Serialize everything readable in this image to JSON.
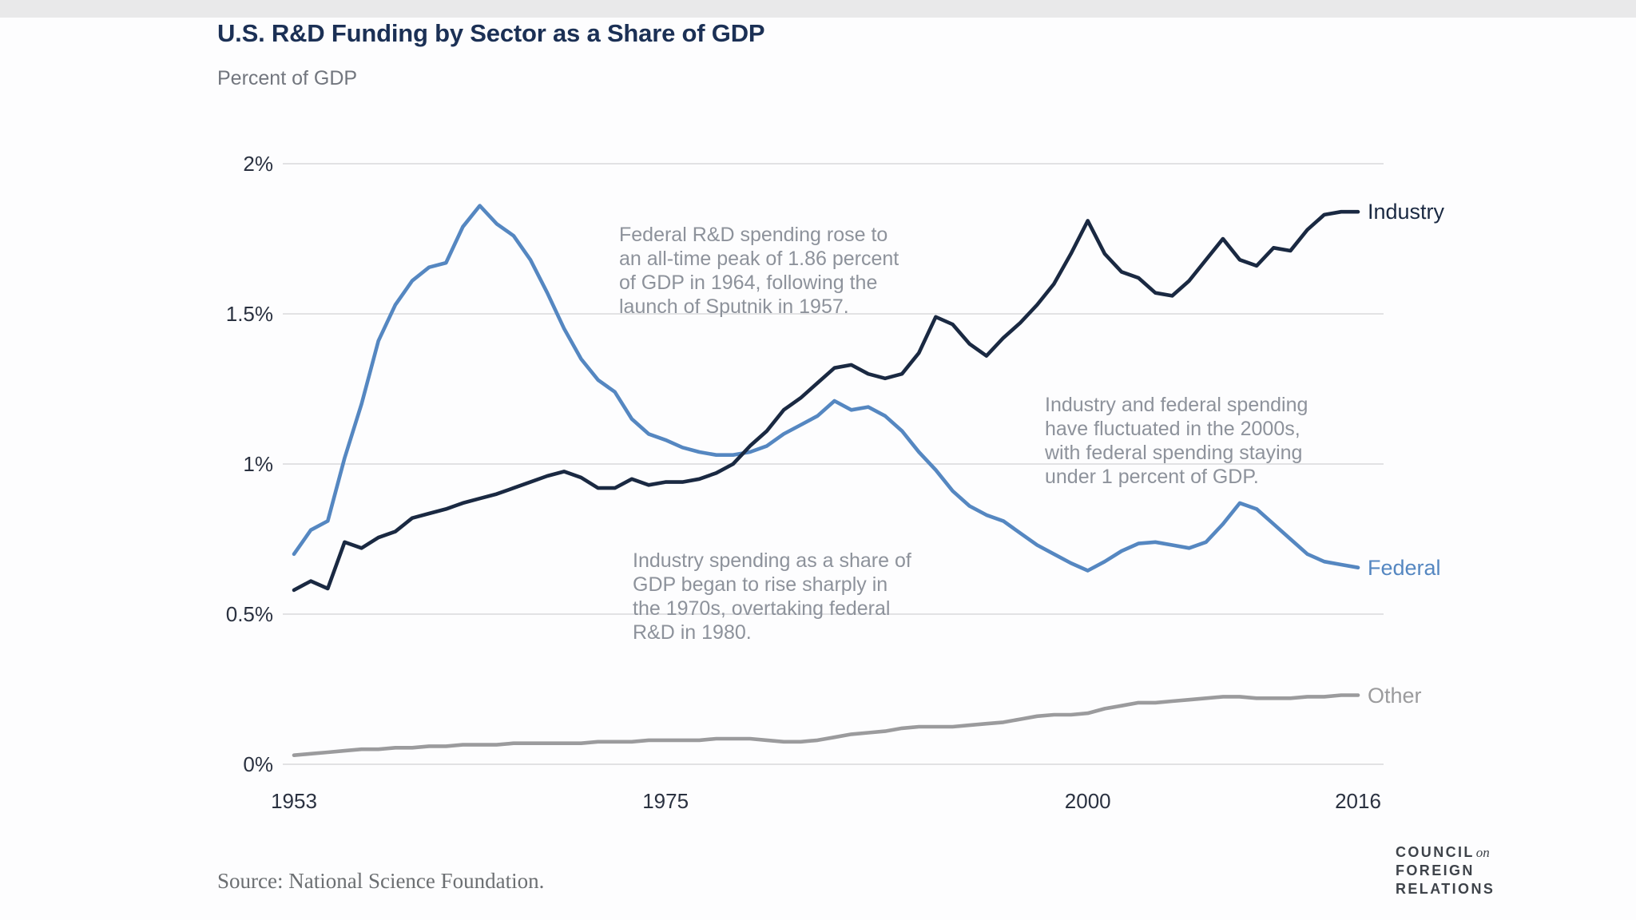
{
  "header": {
    "title": "U.S. R&D Funding by Sector as a Share of GDP",
    "subtitle": "Percent of GDP"
  },
  "annotations": [
    {
      "text": "Federal R&D spending rose to an all-time peak of 1.86 percent of GDP in 1964, following the launch of Sputnik in 1957.",
      "lines": [
        "Federal R&D spending rose to",
        "an all-time peak of 1.86 percent",
        "of GDP in 1964, following the",
        "launch of Sputnik in 1957."
      ]
    },
    {
      "text": "Industry and federal spending have fluctuated in the 2000s, with federal spending staying under 1 percent of GDP.",
      "lines": [
        "Industry and federal spending",
        "have fluctuated in the 2000s,",
        "with federal spending staying",
        "under 1 percent of GDP."
      ]
    },
    {
      "text": "Industry spending as a share of GDP began to rise sharply in the 1970s, overtaking federal R&D in 1980.",
      "lines": [
        "Industry spending as a share of",
        "GDP began to rise sharply in",
        "the 1970s, overtaking federal",
        "R&D in 1980."
      ]
    }
  ],
  "footer": {
    "source": "Source: National Science Foundation.",
    "logo": {
      "line1_main": "COUNCIL",
      "line1_italic": "on",
      "line2": "FOREIGN",
      "line3": "RELATIONS"
    }
  },
  "chart_data": {
    "type": "line",
    "title": "U.S. R&D Funding by Sector as a Share of GDP",
    "ylabel": "Percent of GDP",
    "xlabel": "",
    "grid": "horizontal",
    "legend_position": "line-end-labels",
    "x_range": [
      1953,
      2016
    ],
    "y_range": [
      0,
      2
    ],
    "yticks": [
      {
        "value": 0,
        "label": "0%"
      },
      {
        "value": 0.5,
        "label": "0.5%"
      },
      {
        "value": 1,
        "label": "1%"
      },
      {
        "value": 1.5,
        "label": "1.5%"
      },
      {
        "value": 2,
        "label": "2%"
      }
    ],
    "xticks": [
      {
        "value": 1953,
        "label": "1953"
      },
      {
        "value": 1975,
        "label": "1975"
      },
      {
        "value": 2000,
        "label": "2000"
      },
      {
        "value": 2016,
        "label": "2016"
      }
    ],
    "years": [
      1953,
      1954,
      1955,
      1956,
      1957,
      1958,
      1959,
      1960,
      1961,
      1962,
      1963,
      1964,
      1965,
      1966,
      1967,
      1968,
      1969,
      1970,
      1971,
      1972,
      1973,
      1974,
      1975,
      1976,
      1977,
      1978,
      1979,
      1980,
      1981,
      1982,
      1983,
      1984,
      1985,
      1986,
      1987,
      1988,
      1989,
      1990,
      1991,
      1992,
      1993,
      1994,
      1995,
      1996,
      1997,
      1998,
      1999,
      2000,
      2001,
      2002,
      2003,
      2004,
      2005,
      2006,
      2007,
      2008,
      2009,
      2010,
      2011,
      2012,
      2013,
      2014,
      2015,
      2016
    ],
    "series": [
      {
        "name": "Other",
        "color": "#9b9b9d",
        "values": [
          0.03,
          0.035,
          0.04,
          0.045,
          0.05,
          0.05,
          0.055,
          0.055,
          0.06,
          0.06,
          0.065,
          0.065,
          0.065,
          0.07,
          0.07,
          0.07,
          0.07,
          0.07,
          0.075,
          0.075,
          0.075,
          0.08,
          0.08,
          0.08,
          0.08,
          0.085,
          0.085,
          0.085,
          0.08,
          0.075,
          0.075,
          0.08,
          0.09,
          0.1,
          0.105,
          0.11,
          0.12,
          0.125,
          0.125,
          0.125,
          0.13,
          0.135,
          0.14,
          0.15,
          0.16,
          0.165,
          0.165,
          0.17,
          0.185,
          0.195,
          0.205,
          0.205,
          0.21,
          0.215,
          0.22,
          0.225,
          0.225,
          0.22,
          0.22,
          0.22,
          0.225,
          0.225,
          0.23,
          0.23
        ]
      },
      {
        "name": "Federal",
        "color": "#5587c1",
        "values": [
          0.7,
          0.78,
          0.81,
          1.02,
          1.2,
          1.41,
          1.53,
          1.61,
          1.655,
          1.67,
          1.79,
          1.86,
          1.8,
          1.76,
          1.68,
          1.57,
          1.45,
          1.35,
          1.28,
          1.24,
          1.15,
          1.1,
          1.08,
          1.055,
          1.04,
          1.03,
          1.03,
          1.04,
          1.06,
          1.1,
          1.13,
          1.16,
          1.21,
          1.18,
          1.19,
          1.16,
          1.11,
          1.04,
          0.98,
          0.91,
          0.86,
          0.83,
          0.81,
          0.77,
          0.73,
          0.7,
          0.67,
          0.645,
          0.675,
          0.71,
          0.735,
          0.74,
          0.73,
          0.72,
          0.74,
          0.8,
          0.87,
          0.85,
          0.8,
          0.75,
          0.7,
          0.675,
          0.665,
          0.655
        ]
      },
      {
        "name": "Industry",
        "color": "#1a2942",
        "values": [
          0.58,
          0.61,
          0.585,
          0.74,
          0.72,
          0.755,
          0.775,
          0.82,
          0.835,
          0.85,
          0.87,
          0.885,
          0.9,
          0.92,
          0.94,
          0.96,
          0.975,
          0.955,
          0.92,
          0.92,
          0.95,
          0.93,
          0.94,
          0.94,
          0.95,
          0.97,
          1.0,
          1.06,
          1.11,
          1.18,
          1.22,
          1.27,
          1.32,
          1.33,
          1.3,
          1.285,
          1.3,
          1.37,
          1.49,
          1.465,
          1.4,
          1.36,
          1.42,
          1.47,
          1.53,
          1.6,
          1.7,
          1.81,
          1.7,
          1.64,
          1.62,
          1.57,
          1.56,
          1.61,
          1.68,
          1.75,
          1.68,
          1.66,
          1.72,
          1.71,
          1.78,
          1.83,
          1.84,
          1.84
        ]
      }
    ]
  }
}
